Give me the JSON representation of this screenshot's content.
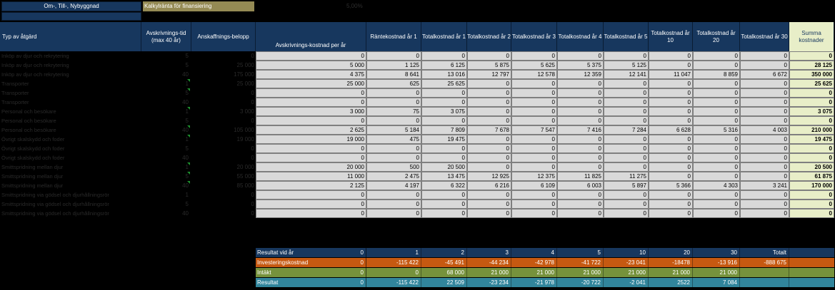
{
  "top": {
    "title": "Om-, Till-, Nybyggnad",
    "kalk_label": "Kalkylränta för finansiering",
    "kalk_value": "5,00%"
  },
  "headers": {
    "typ": "Typ av åtgärd",
    "tid": "Avskrivnings-tid (max 40 år)",
    "belopp": "Anskaffnings-belopp",
    "cols": [
      "Avskrivnings-kostnad per år",
      "Räntekostnad år 1",
      "Totalkostnad år 1",
      "Totalkostnad år 2",
      "Totalkostnad år 3",
      "Totalkostnad år 4",
      "Totalkostnad år 5",
      "Totalkostnad år 10",
      "Totalkostnad år 20",
      "Totalkostnad år 30",
      "Summa kostnader"
    ]
  },
  "rows": [
    {
      "name": "Inköp av djur och rekrytering",
      "tid": "5",
      "belopp": "0",
      "tick": false,
      "v": [
        "0",
        "0",
        "0",
        "0",
        "0",
        "0",
        "0",
        "0",
        "0",
        "0",
        "0"
      ]
    },
    {
      "name": "Inköp av djur och rekrytering",
      "tid": "5",
      "belopp": "25 000",
      "tick": false,
      "v": [
        "5 000",
        "1 125",
        "6 125",
        "5 875",
        "5 625",
        "5 375",
        "5 125",
        "0",
        "0",
        "0",
        "28 125"
      ]
    },
    {
      "name": "Inköp av djur och rekrytering",
      "tid": "40",
      "belopp": "175 000",
      "tick": false,
      "v": [
        "4 375",
        "8 641",
        "13 016",
        "12 797",
        "12 578",
        "12 359",
        "12 141",
        "11 047",
        "8 859",
        "6 672",
        "350 000"
      ]
    },
    {
      "name": "Transporter",
      "tid": "1",
      "belopp": "25 000",
      "tick": true,
      "v": [
        "25 000",
        "625",
        "25 625",
        "0",
        "0",
        "0",
        "0",
        "0",
        "0",
        "0",
        "25 625"
      ]
    },
    {
      "name": "Transporter",
      "tid": "5",
      "belopp": "0",
      "tick": true,
      "v": [
        "0",
        "0",
        "0",
        "0",
        "0",
        "0",
        "0",
        "0",
        "0",
        "0",
        "0"
      ]
    },
    {
      "name": "Transporter",
      "tid": "40",
      "belopp": "0",
      "tick": false,
      "v": [
        "0",
        "0",
        "0",
        "0",
        "0",
        "0",
        "0",
        "0",
        "0",
        "0",
        "0"
      ]
    },
    {
      "name": "Personal och besökare",
      "tid": "1",
      "belopp": "3 000",
      "tick": true,
      "v": [
        "3 000",
        "75",
        "3 075",
        "0",
        "0",
        "0",
        "0",
        "0",
        "0",
        "0",
        "3 075"
      ]
    },
    {
      "name": "Personal och besökare",
      "tid": "5",
      "belopp": "0",
      "tick": false,
      "v": [
        "0",
        "0",
        "0",
        "0",
        "0",
        "0",
        "0",
        "0",
        "0",
        "0",
        "0"
      ]
    },
    {
      "name": "Personal och besökare",
      "tid": "40",
      "belopp": "105 000",
      "tick": true,
      "v": [
        "2 625",
        "5 184",
        "7 809",
        "7 678",
        "7 547",
        "7 416",
        "7 284",
        "6 628",
        "5 316",
        "4 003",
        "210 000"
      ]
    },
    {
      "name": "Övrigt skalskydd och foder",
      "tid": "1",
      "belopp": "19 000",
      "tick": true,
      "v": [
        "19 000",
        "475",
        "19 475",
        "0",
        "0",
        "0",
        "0",
        "0",
        "0",
        "0",
        "19 475"
      ]
    },
    {
      "name": "Övrigt skalskydd och foder",
      "tid": "5",
      "belopp": "0",
      "tick": false,
      "v": [
        "0",
        "0",
        "0",
        "0",
        "0",
        "0",
        "0",
        "0",
        "0",
        "0",
        "0"
      ]
    },
    {
      "name": "Övrigt skalskydd och foder",
      "tid": "40",
      "belopp": "0",
      "tick": false,
      "v": [
        "0",
        "0",
        "0",
        "0",
        "0",
        "0",
        "0",
        "0",
        "0",
        "0",
        "0"
      ]
    },
    {
      "name": "Smittspridning mellan djur",
      "tid": "1",
      "belopp": "20 000",
      "tick": true,
      "v": [
        "20 000",
        "500",
        "20 500",
        "0",
        "0",
        "0",
        "0",
        "0",
        "0",
        "0",
        "20 500"
      ]
    },
    {
      "name": "Smittspridning mellan djur",
      "tid": "5",
      "belopp": "55 000",
      "tick": true,
      "v": [
        "11 000",
        "2 475",
        "13 475",
        "12 925",
        "12 375",
        "11 825",
        "11 275",
        "0",
        "0",
        "0",
        "61 875"
      ]
    },
    {
      "name": "Smittspridning mellan djur",
      "tid": "40",
      "belopp": "85 000",
      "tick": true,
      "v": [
        "2 125",
        "4 197",
        "6 322",
        "6 216",
        "6 109",
        "6 003",
        "5 897",
        "5 366",
        "4 303",
        "3 241",
        "170 000"
      ]
    },
    {
      "name": "Smittspridning via gödsel och djurhållningsrör",
      "tid": "1",
      "belopp": "0",
      "tick": false,
      "v": [
        "0",
        "0",
        "0",
        "0",
        "0",
        "0",
        "0",
        "0",
        "0",
        "0",
        "0"
      ]
    },
    {
      "name": "Smittspridning via gödsel och djurhållningsrör",
      "tid": "5",
      "belopp": "0",
      "tick": false,
      "v": [
        "0",
        "0",
        "0",
        "0",
        "0",
        "0",
        "0",
        "0",
        "0",
        "0",
        "0"
      ]
    },
    {
      "name": "Smittspridning via gödsel och djurhållningsrör",
      "tid": "40",
      "belopp": "0",
      "tick": false,
      "v": [
        "0",
        "0",
        "0",
        "0",
        "0",
        "0",
        "0",
        "0",
        "0",
        "0",
        "0"
      ]
    }
  ],
  "results": [
    {
      "label": "Resultat vid år",
      "color": "#17375e",
      "v": [
        "0",
        "1",
        "2",
        "3",
        "4",
        "5",
        "10",
        "20",
        "30",
        "Totalt"
      ]
    },
    {
      "label": "Investeringskostnad",
      "color": "#c65911",
      "v": [
        "0",
        "-115 422",
        "-45 491",
        "-44 234",
        "-42 978",
        "-41 722",
        "-23 041",
        "-18478",
        "-13 916",
        "-888 675"
      ]
    },
    {
      "label": "Intäkt",
      "color": "#76923c",
      "v": [
        "0",
        "0",
        "68 000",
        "21 000",
        "21 000",
        "21 000",
        "21 000",
        "21 000",
        "21 000",
        ""
      ]
    },
    {
      "label": "Resultat",
      "color": "#31859c",
      "v": [
        "0",
        "-115 422",
        "22 509",
        "-23 234",
        "-21 978",
        "-20 722",
        "-2 041",
        "2522",
        "7 084",
        ""
      ]
    }
  ]
}
